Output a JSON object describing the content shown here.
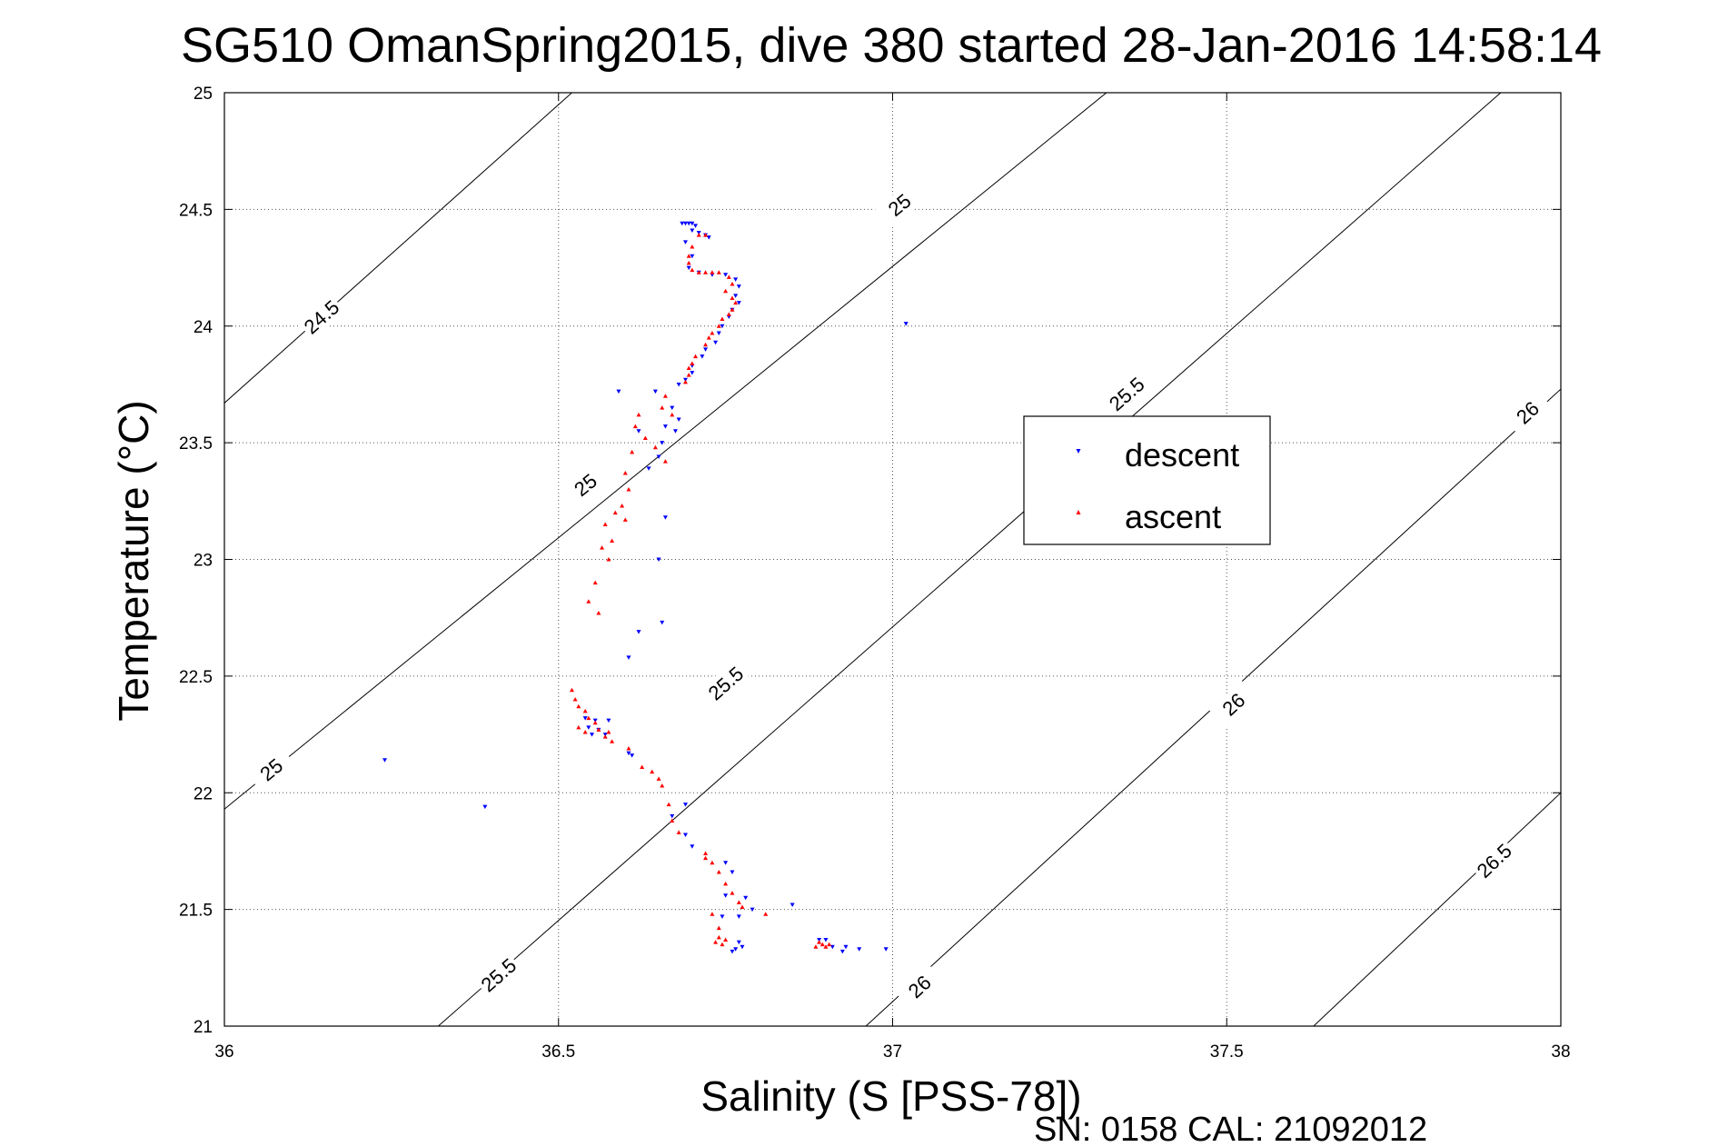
{
  "chart_data": {
    "type": "scatter",
    "title": "SG510 OmanSpring2015, dive 380 started 28-Jan-2016 14:58:14",
    "xlabel": "Salinity (S [PSS-78])",
    "ylabel": "Temperature (°C)",
    "xlim": [
      36,
      38
    ],
    "ylim": [
      21,
      25
    ],
    "xticks": [
      "36",
      "36.5",
      "37",
      "37.5",
      "38"
    ],
    "yticks": [
      "21",
      "21.5",
      "22",
      "22.5",
      "23",
      "23.5",
      "24",
      "24.5",
      "25"
    ],
    "grid": true,
    "legend_position": "right-center",
    "footer": "SN: 0158  CAL: 21092012",
    "contours": [
      {
        "value": 24.5,
        "label": "24.5",
        "p1": [
          36.0,
          23.67
        ],
        "p2": [
          36.52,
          25.0
        ],
        "label_at": [
          36.145,
          24.04
        ]
      },
      {
        "value": 25.0,
        "label": "25",
        "p1": [
          36.0,
          21.93
        ],
        "p2": [
          37.32,
          25.0
        ],
        "label_at": [
          36.07,
          22.1
        ]
      },
      {
        "value": 25.0,
        "label": "25",
        "p1": null,
        "p2": null,
        "label_at": [
          36.54,
          23.32
        ]
      },
      {
        "value": 25.0,
        "label": "25",
        "p1": null,
        "p2": null,
        "label_at": [
          37.01,
          24.52
        ]
      },
      {
        "value": 25.5,
        "label": "25.5",
        "p1": [
          36.32,
          21.0
        ],
        "p2": [
          37.91,
          25.0
        ],
        "label_at": [
          36.41,
          21.22
        ]
      },
      {
        "value": 25.5,
        "label": "25.5",
        "p1": null,
        "p2": null,
        "label_at": [
          36.75,
          22.47
        ]
      },
      {
        "value": 25.5,
        "label": "25.5",
        "p1": null,
        "p2": null,
        "label_at": [
          37.35,
          23.71
        ]
      },
      {
        "value": 26.0,
        "label": "26",
        "p1": [
          36.96,
          21.0
        ],
        "p2": [
          38.0,
          23.73
        ],
        "label_at": [
          37.04,
          21.17
        ]
      },
      {
        "value": 26.0,
        "label": "26",
        "p1": null,
        "p2": null,
        "label_at": [
          37.51,
          22.38
        ]
      },
      {
        "value": 26.0,
        "label": "26",
        "p1": null,
        "p2": null,
        "label_at": [
          37.95,
          23.63
        ]
      },
      {
        "value": 26.5,
        "label": "26.5",
        "p1": [
          37.63,
          21.0
        ],
        "p2": [
          38.0,
          22.0
        ],
        "label_at": [
          37.9,
          21.71
        ]
      }
    ],
    "series": [
      {
        "name": "descent",
        "color": "#0000ff",
        "marker": "triangle-down",
        "points": [
          [
            36.685,
            24.44
          ],
          [
            36.69,
            24.44
          ],
          [
            36.695,
            24.44
          ],
          [
            36.7,
            24.44
          ],
          [
            36.705,
            24.43
          ],
          [
            36.7,
            24.41
          ],
          [
            36.71,
            24.4
          ],
          [
            36.72,
            24.39
          ],
          [
            36.725,
            24.38
          ],
          [
            36.69,
            24.36
          ],
          [
            36.7,
            24.3
          ],
          [
            36.695,
            24.25
          ],
          [
            36.71,
            24.23
          ],
          [
            36.73,
            24.22
          ],
          [
            36.75,
            24.22
          ],
          [
            36.765,
            24.2
          ],
          [
            36.77,
            24.17
          ],
          [
            36.765,
            24.13
          ],
          [
            36.77,
            24.1
          ],
          [
            36.76,
            24.07
          ],
          [
            36.755,
            24.04
          ],
          [
            36.745,
            24.0
          ],
          [
            36.74,
            23.97
          ],
          [
            36.735,
            23.93
          ],
          [
            36.72,
            23.9
          ],
          [
            36.715,
            23.87
          ],
          [
            36.7,
            23.83
          ],
          [
            36.7,
            23.8
          ],
          [
            36.69,
            23.77
          ],
          [
            36.68,
            23.75
          ],
          [
            36.645,
            23.72
          ],
          [
            36.59,
            23.72
          ],
          [
            36.67,
            23.65
          ],
          [
            36.68,
            23.6
          ],
          [
            36.66,
            23.57
          ],
          [
            36.675,
            23.55
          ],
          [
            36.62,
            23.55
          ],
          [
            36.655,
            23.5
          ],
          [
            36.65,
            23.44
          ],
          [
            36.635,
            23.39
          ],
          [
            36.66,
            23.18
          ],
          [
            36.65,
            23.0
          ],
          [
            36.655,
            22.73
          ],
          [
            36.62,
            22.69
          ],
          [
            36.605,
            22.58
          ],
          [
            36.54,
            22.32
          ],
          [
            36.545,
            22.28
          ],
          [
            36.555,
            22.31
          ],
          [
            36.56,
            22.27
          ],
          [
            36.575,
            22.31
          ],
          [
            36.55,
            22.25
          ],
          [
            36.57,
            22.25
          ],
          [
            36.605,
            22.17
          ],
          [
            36.61,
            22.16
          ],
          [
            36.24,
            22.14
          ],
          [
            36.39,
            21.94
          ],
          [
            36.69,
            21.95
          ],
          [
            36.67,
            21.9
          ],
          [
            36.69,
            21.82
          ],
          [
            36.7,
            21.77
          ],
          [
            36.75,
            21.7
          ],
          [
            36.76,
            21.66
          ],
          [
            36.75,
            21.56
          ],
          [
            36.78,
            21.55
          ],
          [
            36.79,
            21.5
          ],
          [
            36.77,
            21.47
          ],
          [
            36.745,
            21.47
          ],
          [
            36.85,
            21.52
          ],
          [
            36.89,
            21.37
          ],
          [
            36.9,
            21.37
          ],
          [
            36.91,
            21.34
          ],
          [
            36.93,
            21.34
          ],
          [
            36.925,
            21.32
          ],
          [
            36.95,
            21.33
          ],
          [
            36.99,
            21.33
          ],
          [
            36.77,
            21.36
          ],
          [
            36.775,
            21.34
          ],
          [
            36.765,
            21.33
          ],
          [
            36.76,
            21.32
          ],
          [
            37.02,
            24.01
          ]
        ]
      },
      {
        "name": "ascent",
        "color": "#ff0000",
        "marker": "triangle-up",
        "points": [
          [
            36.71,
            24.39
          ],
          [
            36.72,
            24.39
          ],
          [
            36.7,
            24.34
          ],
          [
            36.695,
            24.3
          ],
          [
            36.695,
            24.27
          ],
          [
            36.7,
            24.24
          ],
          [
            36.71,
            24.23
          ],
          [
            36.72,
            24.23
          ],
          [
            36.73,
            24.23
          ],
          [
            36.74,
            24.23
          ],
          [
            36.755,
            24.21
          ],
          [
            36.76,
            24.18
          ],
          [
            36.75,
            24.15
          ],
          [
            36.76,
            24.12
          ],
          [
            36.765,
            24.1
          ],
          [
            36.76,
            24.07
          ],
          [
            36.755,
            24.05
          ],
          [
            36.745,
            24.03
          ],
          [
            36.74,
            24.0
          ],
          [
            36.73,
            23.97
          ],
          [
            36.725,
            23.95
          ],
          [
            36.72,
            23.92
          ],
          [
            36.705,
            23.87
          ],
          [
            36.7,
            23.84
          ],
          [
            36.695,
            23.82
          ],
          [
            36.695,
            23.79
          ],
          [
            36.69,
            23.76
          ],
          [
            36.66,
            23.7
          ],
          [
            36.655,
            23.65
          ],
          [
            36.67,
            23.62
          ],
          [
            36.62,
            23.62
          ],
          [
            36.615,
            23.57
          ],
          [
            36.63,
            23.52
          ],
          [
            36.645,
            23.48
          ],
          [
            36.66,
            23.42
          ],
          [
            36.61,
            23.46
          ],
          [
            36.6,
            23.37
          ],
          [
            36.605,
            23.3
          ],
          [
            36.595,
            23.23
          ],
          [
            36.585,
            23.2
          ],
          [
            36.6,
            23.17
          ],
          [
            36.57,
            23.15
          ],
          [
            36.58,
            23.08
          ],
          [
            36.565,
            23.05
          ],
          [
            36.575,
            23.0
          ],
          [
            36.555,
            22.9
          ],
          [
            36.545,
            22.82
          ],
          [
            36.56,
            22.77
          ],
          [
            36.52,
            22.44
          ],
          [
            36.525,
            22.4
          ],
          [
            36.53,
            22.37
          ],
          [
            36.54,
            22.35
          ],
          [
            36.545,
            22.32
          ],
          [
            36.53,
            22.28
          ],
          [
            36.54,
            22.26
          ],
          [
            36.555,
            22.3
          ],
          [
            36.56,
            22.27
          ],
          [
            36.57,
            22.24
          ],
          [
            36.575,
            22.26
          ],
          [
            36.58,
            22.22
          ],
          [
            36.605,
            22.19
          ],
          [
            36.625,
            22.11
          ],
          [
            36.64,
            22.09
          ],
          [
            36.65,
            22.06
          ],
          [
            36.655,
            22.03
          ],
          [
            36.665,
            21.95
          ],
          [
            36.67,
            21.88
          ],
          [
            36.68,
            21.83
          ],
          [
            36.72,
            21.74
          ],
          [
            36.73,
            21.7
          ],
          [
            36.74,
            21.66
          ],
          [
            36.75,
            21.61
          ],
          [
            36.76,
            21.57
          ],
          [
            36.77,
            21.53
          ],
          [
            36.775,
            21.51
          ],
          [
            36.73,
            21.48
          ],
          [
            36.74,
            21.42
          ],
          [
            36.74,
            21.38
          ],
          [
            36.75,
            21.37
          ],
          [
            36.735,
            21.36
          ],
          [
            36.745,
            21.35
          ],
          [
            36.89,
            21.36
          ],
          [
            36.895,
            21.35
          ],
          [
            36.9,
            21.34
          ],
          [
            36.885,
            21.34
          ],
          [
            36.905,
            21.35
          ],
          [
            36.81,
            21.48
          ],
          [
            36.72,
            21.72
          ]
        ]
      }
    ]
  }
}
